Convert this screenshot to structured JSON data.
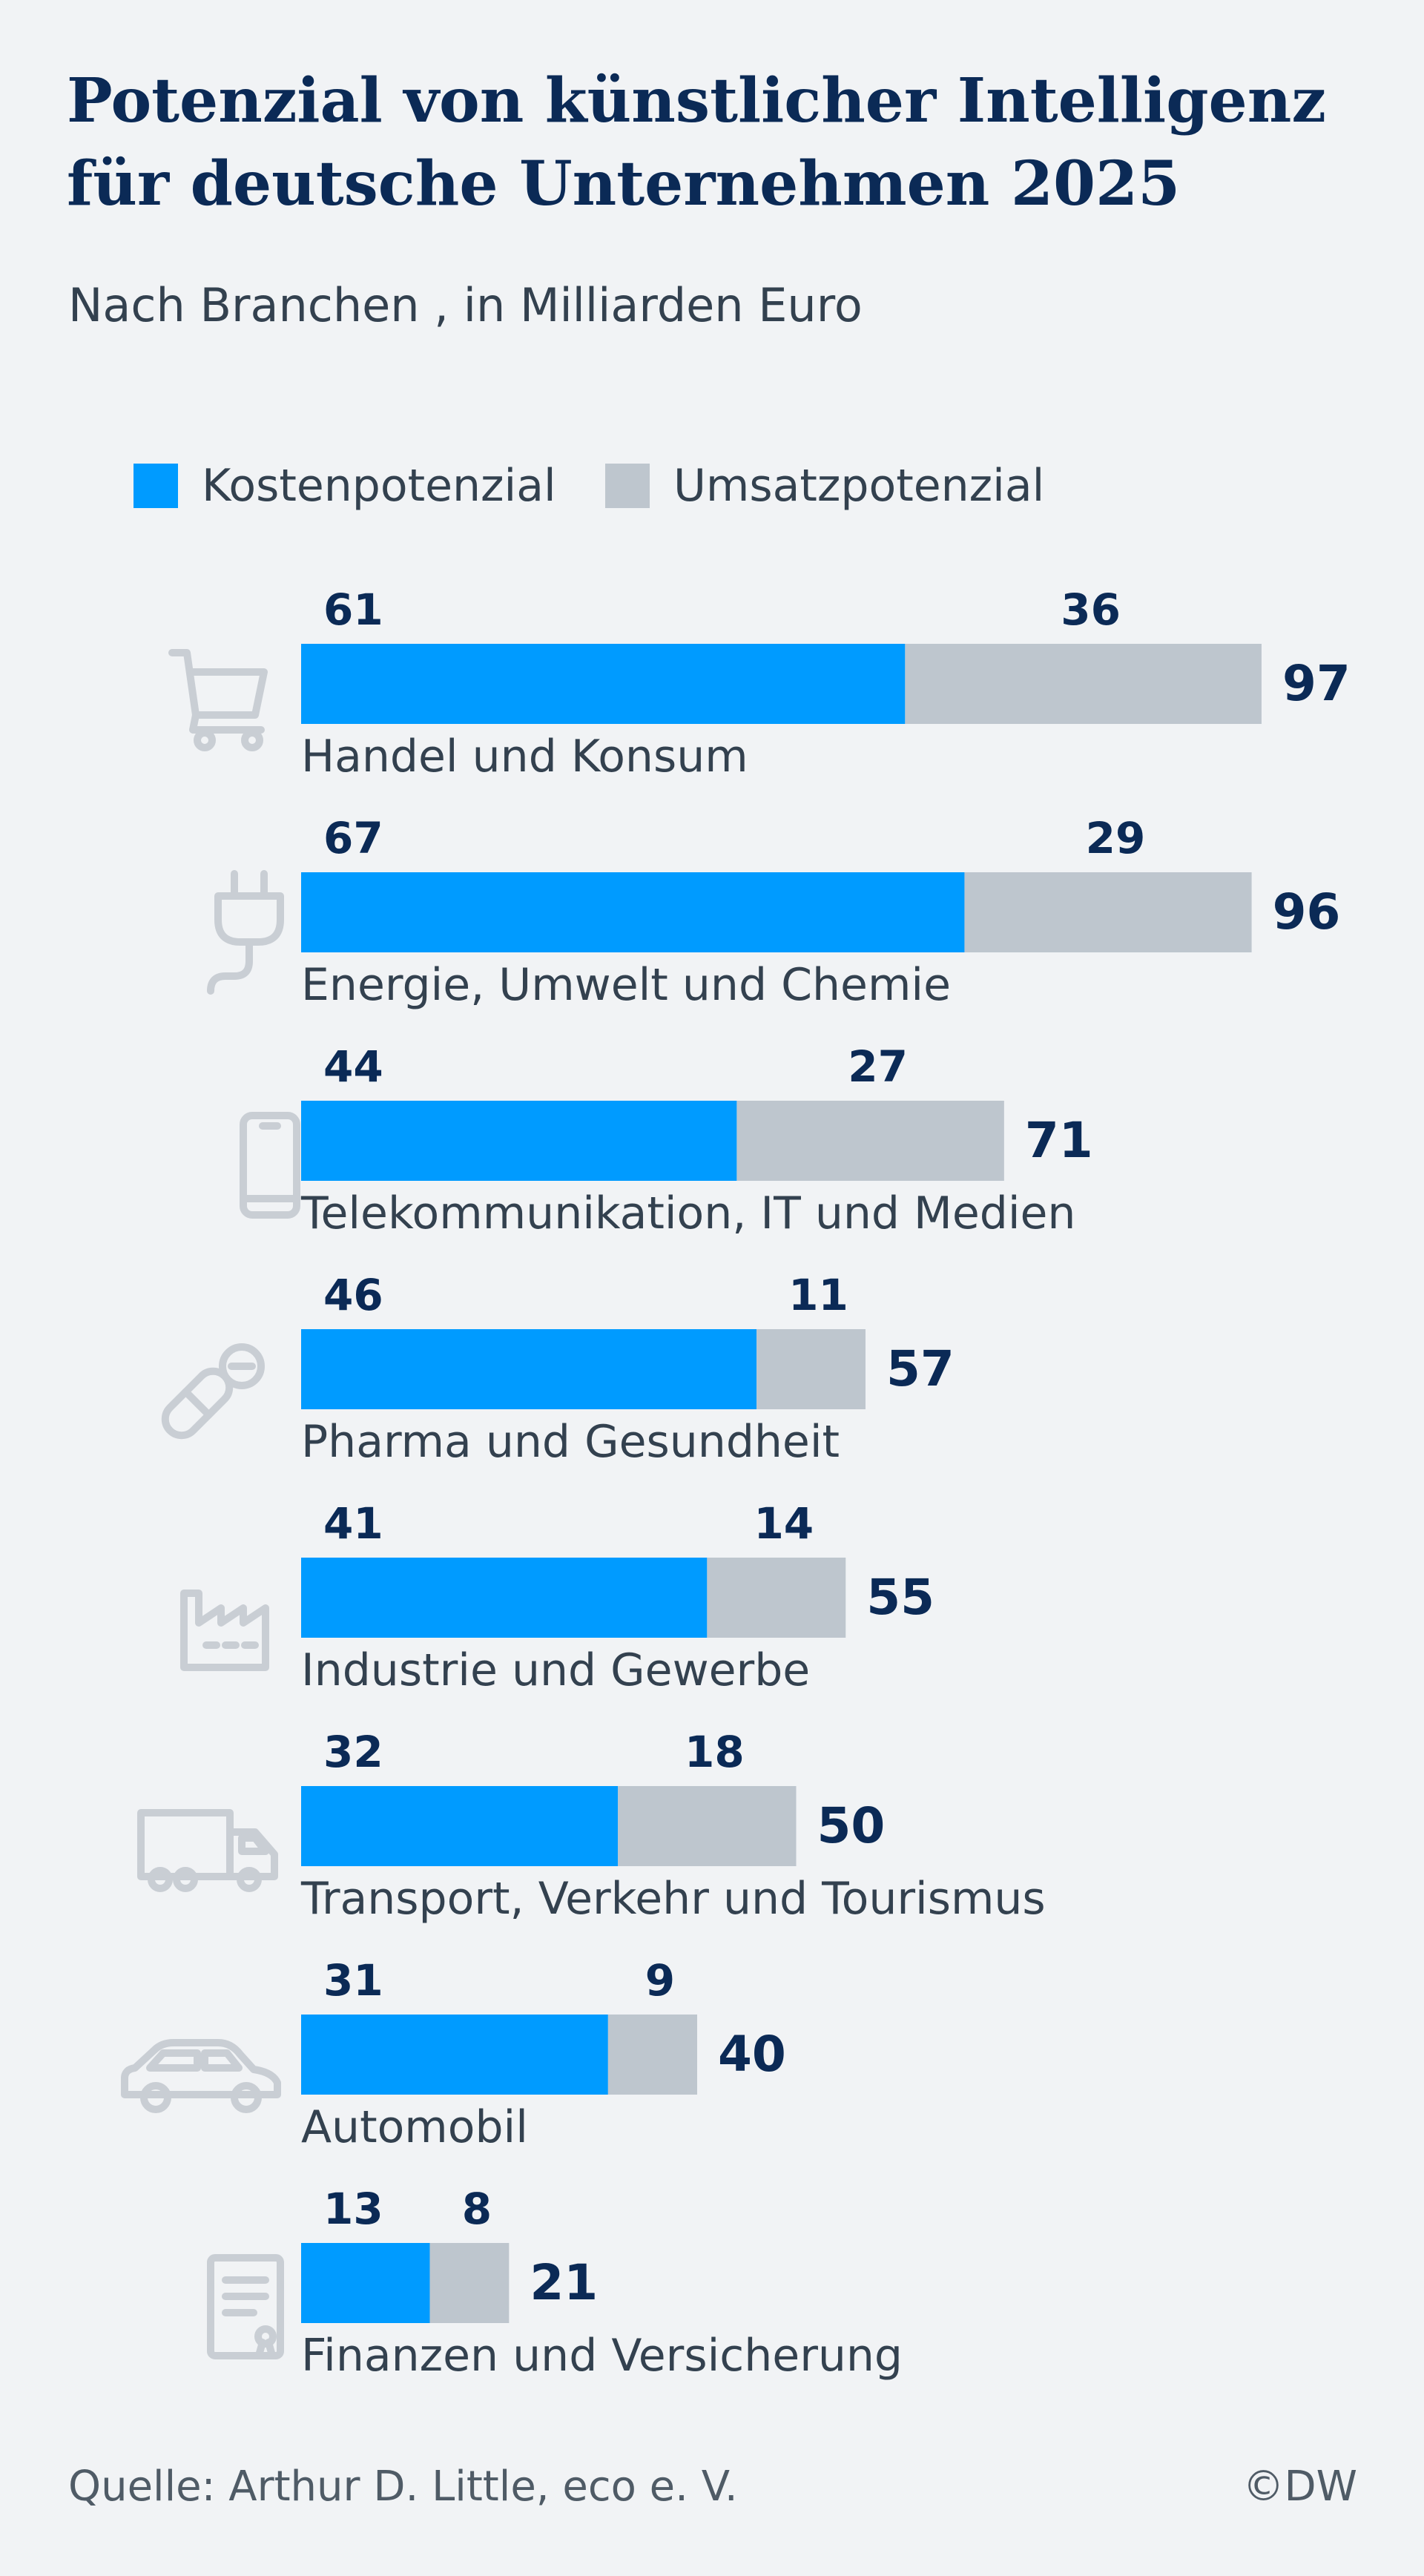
{
  "header": {
    "title_line1": "Potenzial von künstlicher Intelligenz",
    "title_line2": "für deutsche Unternehmen 2025",
    "subtitle": "Nach Branchen , in Milliarden Euro"
  },
  "legend": {
    "items": [
      {
        "label": "Kostenpotenzial",
        "color": "#009bff"
      },
      {
        "label": "Umsatzpotenzial",
        "color": "#bec6ce"
      }
    ]
  },
  "footer": {
    "source": "Quelle: Arthur D. Little, eco e. V.",
    "credit": "©DW"
  },
  "colors": {
    "title": "#0b2a56",
    "value_label": "#0b2a56",
    "category_label": "#33414f",
    "icon": "#c9ced4"
  },
  "chart_data": {
    "type": "bar",
    "orientation": "horizontal",
    "stacked": true,
    "title": "Potenzial von künstlicher Intelligenz für deutsche Unternehmen 2025",
    "subtitle": "Nach Branchen , in Milliarden Euro",
    "xlim": [
      0,
      100
    ],
    "grid": false,
    "legend_position": "top",
    "categories": [
      "Handel und Konsum",
      "Energie, Umwelt und Chemie",
      "Telekommunikation, IT und Medien",
      "Pharma und Gesundheit",
      "Industrie und Gewerbe",
      "Transport, Verkehr und Tourismus",
      "Automobil",
      "Finanzen und Versicherung"
    ],
    "category_icons": [
      "shopping-cart-icon",
      "power-plug-icon",
      "smartphone-icon",
      "pill-icon",
      "factory-icon",
      "truck-icon",
      "car-icon",
      "document-icon"
    ],
    "series": [
      {
        "name": "Kostenpotenzial",
        "color": "#009bff",
        "values": [
          61,
          67,
          44,
          46,
          41,
          32,
          31,
          13
        ]
      },
      {
        "name": "Umsatzpotenzial",
        "color": "#bec6ce",
        "values": [
          36,
          29,
          27,
          11,
          14,
          18,
          9,
          8
        ]
      }
    ],
    "totals": [
      97,
      96,
      71,
      57,
      55,
      50,
      40,
      21
    ]
  }
}
